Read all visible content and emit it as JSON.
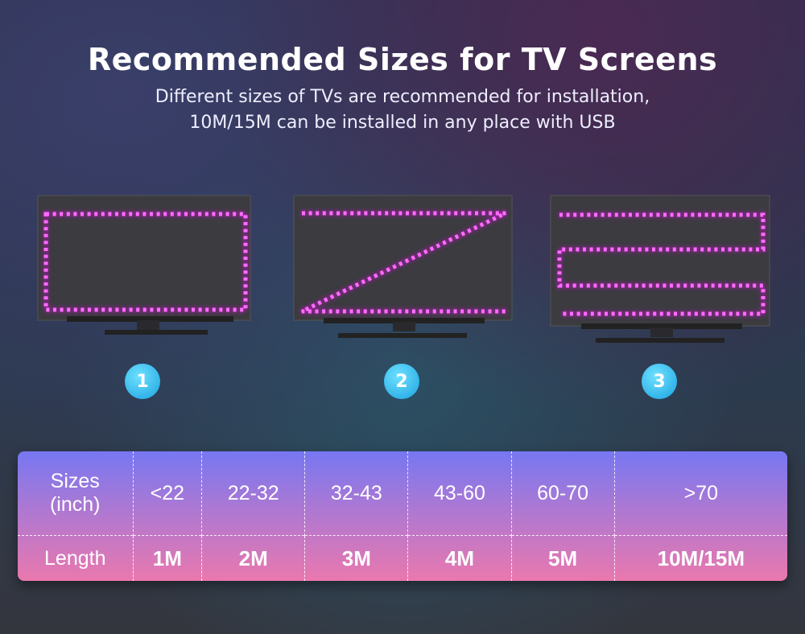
{
  "title": "Recommended Sizes for TV Screens",
  "subtitle_lines": [
    "Different sizes of TVs are recommended for installation,",
    "10M/15M can be installed in any place with USB"
  ],
  "badges": [
    "1",
    "2",
    "3"
  ],
  "colors": {
    "led": "#ff66ff",
    "badge": "#2ab4ea",
    "table_top": "#7777f2",
    "table_bottom": "#ea78ae"
  },
  "table": {
    "row_headers": [
      "Sizes\n(inch)",
      "Length"
    ],
    "sizes_header_lines": [
      "Sizes",
      "(inch)"
    ],
    "sizes": [
      "<22",
      "22-32",
      "32-43",
      "43-60",
      "60-70",
      ">70"
    ],
    "length_header": "Length",
    "lengths": [
      "1M",
      "2M",
      "3M",
      "4M",
      "5M",
      "10M/15M"
    ]
  }
}
